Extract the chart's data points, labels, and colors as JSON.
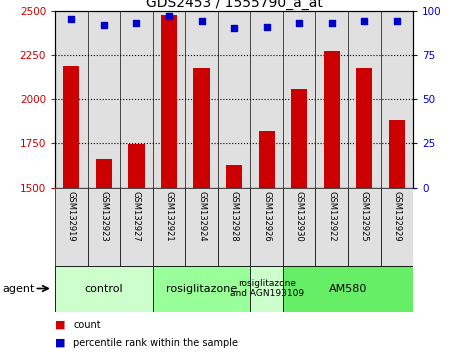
{
  "title": "GDS2453 / 1555790_a_at",
  "samples": [
    "GSM132919",
    "GSM132923",
    "GSM132927",
    "GSM132921",
    "GSM132924",
    "GSM132928",
    "GSM132926",
    "GSM132930",
    "GSM132922",
    "GSM132925",
    "GSM132929"
  ],
  "counts": [
    2185,
    1660,
    1745,
    2475,
    2175,
    1630,
    1820,
    2055,
    2270,
    2175,
    1880
  ],
  "percentile_ranks": [
    95,
    92,
    93,
    97,
    94,
    90,
    91,
    93,
    93,
    94,
    94
  ],
  "ylim_left": [
    1500,
    2500
  ],
  "ylim_right": [
    0,
    100
  ],
  "yticks_left": [
    1500,
    1750,
    2000,
    2250,
    2500
  ],
  "yticks_right": [
    0,
    25,
    50,
    75,
    100
  ],
  "bar_color": "#cc0000",
  "dot_color": "#0000cc",
  "agent_groups": [
    {
      "label": "control",
      "start": 0,
      "end": 3,
      "color": "#ccffcc"
    },
    {
      "label": "rosiglitazone",
      "start": 3,
      "end": 6,
      "color": "#99ff99"
    },
    {
      "label": "rosiglitazone\nand AGN193109",
      "start": 6,
      "end": 7,
      "color": "#ccffcc"
    },
    {
      "label": "AM580",
      "start": 7,
      "end": 11,
      "color": "#66ee66"
    }
  ],
  "agent_label": "agent",
  "legend_count_label": "count",
  "legend_pct_label": "percentile rank within the sample",
  "tick_label_color_left": "#cc0000",
  "tick_label_color_right": "#0000cc",
  "bar_width": 0.5,
  "bg_sample_color": "#e0e0e0",
  "title_fontsize": 10
}
